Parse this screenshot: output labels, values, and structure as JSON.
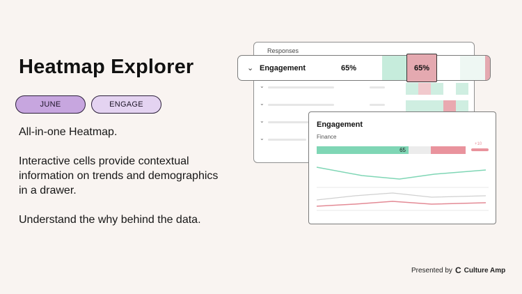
{
  "title": "Heatmap Explorer",
  "chips": [
    "JUNE",
    "ENGAGE"
  ],
  "description": [
    "All-in-one Heatmap.",
    "Interactive cells provide contextual information on trends and demographics in a drawer.",
    "Understand the why behind the data."
  ],
  "heatmap": {
    "header": "Responses",
    "row": {
      "label": "Engagement",
      "value": "65%",
      "cell_value": "65%"
    },
    "chevron_icon": "chevron-down-icon"
  },
  "drawer": {
    "title": "Engagement",
    "subtitle": "Finance",
    "score": "65",
    "delta": "+10"
  },
  "footer": {
    "prefix": "Presented by",
    "brand": "Culture Amp"
  },
  "colors": {
    "green": "#7fd6b5",
    "light_green": "#c6ecdc",
    "red": "#e9939d",
    "light_red": "#f1c9cd",
    "background": "#f9f4f1"
  }
}
